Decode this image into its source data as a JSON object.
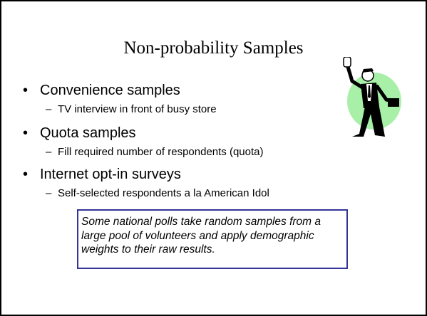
{
  "title": "Non-probability Samples",
  "bullets": [
    {
      "text": "Convenience samples",
      "sub": "TV interview in front of busy store"
    },
    {
      "text": "Quota samples",
      "sub": "Fill required number of respondents (quota)"
    },
    {
      "text": "Internet opt-in surveys",
      "sub": "Self-selected respondents a la American Idol"
    }
  ],
  "note": {
    "lines": [
      "Some national polls take random samples from a",
      "large pool of volunteers and apply demographic",
      "weights to their raw results."
    ]
  }
}
